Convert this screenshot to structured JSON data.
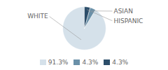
{
  "chart_data": {
    "type": "pie",
    "categories": [
      "WHITE",
      "ASIAN",
      "HISPANIC"
    ],
    "values": [
      91.3,
      4.3,
      4.3
    ],
    "colors": [
      "#d5e1ea",
      "#6a90a8",
      "#2c4e6a"
    ],
    "value_labels": [
      "91.3%",
      "4.3%",
      "4.3%"
    ],
    "legend": "bottom"
  }
}
